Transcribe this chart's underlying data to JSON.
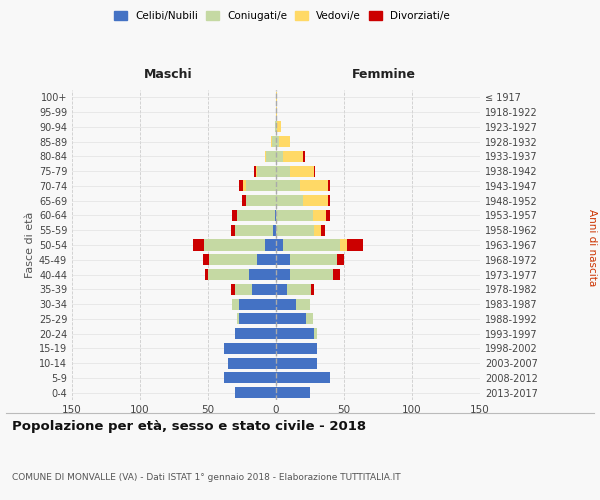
{
  "age_groups": [
    "0-4",
    "5-9",
    "10-14",
    "15-19",
    "20-24",
    "25-29",
    "30-34",
    "35-39",
    "40-44",
    "45-49",
    "50-54",
    "55-59",
    "60-64",
    "65-69",
    "70-74",
    "75-79",
    "80-84",
    "85-89",
    "90-94",
    "95-99",
    "100+"
  ],
  "birth_years": [
    "2013-2017",
    "2008-2012",
    "2003-2007",
    "1998-2002",
    "1993-1997",
    "1988-1992",
    "1983-1987",
    "1978-1982",
    "1973-1977",
    "1968-1972",
    "1963-1967",
    "1958-1962",
    "1953-1957",
    "1948-1952",
    "1943-1947",
    "1938-1942",
    "1933-1937",
    "1928-1932",
    "1923-1927",
    "1918-1922",
    "≤ 1917"
  ],
  "maschi": {
    "celibi": [
      30,
      38,
      35,
      38,
      30,
      27,
      27,
      18,
      20,
      14,
      8,
      2,
      1,
      0,
      0,
      0,
      0,
      0,
      0,
      0,
      0
    ],
    "coniugati": [
      0,
      0,
      0,
      0,
      0,
      2,
      5,
      12,
      30,
      35,
      45,
      28,
      28,
      22,
      22,
      14,
      7,
      3,
      1,
      0,
      0
    ],
    "vedovi": [
      0,
      0,
      0,
      0,
      0,
      0,
      0,
      0,
      0,
      0,
      0,
      0,
      0,
      0,
      2,
      1,
      1,
      1,
      0,
      0,
      0
    ],
    "divorziati": [
      0,
      0,
      0,
      0,
      0,
      0,
      0,
      3,
      2,
      5,
      8,
      3,
      3,
      3,
      3,
      1,
      0,
      0,
      0,
      0,
      0
    ]
  },
  "femmine": {
    "nubili": [
      25,
      40,
      30,
      30,
      28,
      22,
      15,
      8,
      10,
      10,
      5,
      0,
      0,
      0,
      0,
      0,
      0,
      0,
      0,
      0,
      0
    ],
    "coniugate": [
      0,
      0,
      0,
      0,
      2,
      5,
      10,
      18,
      32,
      35,
      42,
      28,
      27,
      20,
      18,
      10,
      5,
      2,
      1,
      0,
      0
    ],
    "vedove": [
      0,
      0,
      0,
      0,
      0,
      0,
      0,
      0,
      0,
      0,
      5,
      5,
      10,
      18,
      20,
      18,
      15,
      8,
      3,
      1,
      1
    ],
    "divorziate": [
      0,
      0,
      0,
      0,
      0,
      0,
      0,
      2,
      5,
      5,
      12,
      3,
      3,
      2,
      2,
      1,
      1,
      0,
      0,
      0,
      0
    ]
  },
  "colors": {
    "celibi": "#4472C4",
    "coniugati": "#C5D9A3",
    "vedovi": "#FFD966",
    "divorziati": "#CC0000"
  },
  "xlim": 150,
  "title": "Popolazione per età, sesso e stato civile - 2018",
  "subtitle": "COMUNE DI MONVALLE (VA) - Dati ISTAT 1° gennaio 2018 - Elaborazione TUTTITALIA.IT",
  "ylabel_left": "Fasce di età",
  "ylabel_right": "Anni di nascita",
  "xlabel_left": "Maschi",
  "xlabel_right": "Femmine",
  "bg_color": "#f8f8f8",
  "grid_color": "#cccccc"
}
